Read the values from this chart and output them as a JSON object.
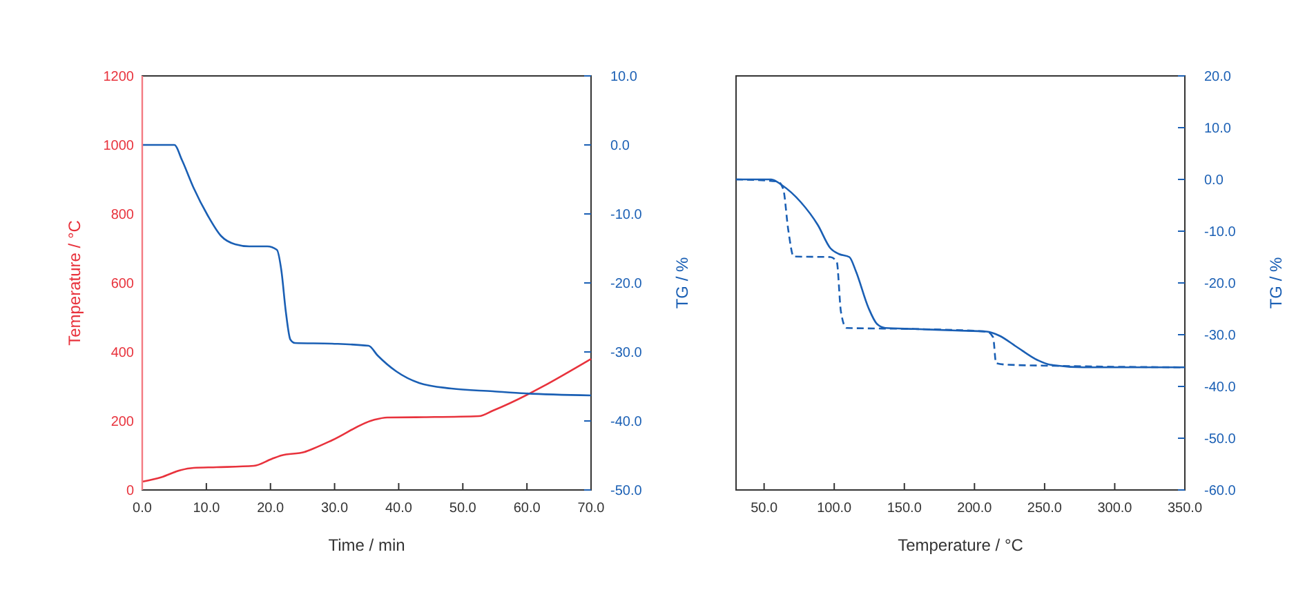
{
  "chart_data": [
    {
      "type": "line",
      "xlabel": "Time / min",
      "ylabel": "Temperature / °C",
      "y2label": "TG / %",
      "xlim": [
        0,
        70
      ],
      "xticks": [
        {
          "value": 0,
          "label": "0.0"
        },
        {
          "value": 10,
          "label": "10.0"
        },
        {
          "value": 20,
          "label": "20.0"
        },
        {
          "value": 30,
          "label": "30.0"
        },
        {
          "value": 40,
          "label": "40.0"
        },
        {
          "value": 50,
          "label": "50.0"
        },
        {
          "value": 60,
          "label": "60.0"
        },
        {
          "value": 70,
          "label": "70.0"
        }
      ],
      "ylim": [
        0,
        1200
      ],
      "yticks": [
        0,
        200,
        400,
        600,
        800,
        1000,
        1200
      ],
      "y2lim": [
        -50,
        10
      ],
      "y2ticks": [
        {
          "value": -50,
          "label": "-50.0"
        },
        {
          "value": -40,
          "label": "-40.0"
        },
        {
          "value": -30,
          "label": "-30.0"
        },
        {
          "value": -20,
          "label": "-20.0"
        },
        {
          "value": -10,
          "label": "-10.0"
        },
        {
          "value": 0,
          "label": "0.0"
        },
        {
          "value": 10,
          "label": "10.0"
        }
      ],
      "grid": false,
      "series": [
        {
          "color": "#e8323c",
          "axis": "y",
          "x": [
            0,
            3,
            5.9,
            8,
            11.6,
            17.4,
            20.2,
            21.7,
            25.3,
            26.7,
            29.6,
            36.1,
            38.2,
            44,
            52.5,
            54.7,
            70
          ],
          "values": [
            24,
            37,
            57,
            64,
            66,
            70,
            90,
            100,
            110,
            120,
            144,
            203,
            210,
            211,
            214,
            230,
            380
          ]
        },
        {
          "color": "#1a5fb4",
          "axis": "y2",
          "x": [
            0,
            5,
            6.2,
            8,
            10.2,
            12.3,
            14.5,
            16.7,
            19.5,
            21,
            21.7,
            22.4,
            23.1,
            23.8,
            29.6,
            35.3,
            36.7,
            39.6,
            43.2,
            48.2,
            54.7,
            59.7,
            70
          ],
          "values": [
            0,
            0,
            -2.2,
            -6.2,
            -10.2,
            -13.2,
            -14.4,
            -14.7,
            -14.7,
            -15.2,
            -18.2,
            -24.2,
            -28.2,
            -28.7,
            -28.8,
            -29.1,
            -30.5,
            -32.8,
            -34.5,
            -35.3,
            -35.7,
            -36,
            -36.3
          ]
        }
      ]
    },
    {
      "type": "line",
      "xlabel": "Temperature / °C",
      "y2label": "TG / %",
      "xlim": [
        30,
        350
      ],
      "xticks": [
        {
          "value": 50,
          "label": "50.0"
        },
        {
          "value": 100,
          "label": "100.0"
        },
        {
          "value": 150,
          "label": "150.0"
        },
        {
          "value": 200,
          "label": "200.0"
        },
        {
          "value": 250,
          "label": "250.0"
        },
        {
          "value": 300,
          "label": "300.0"
        },
        {
          "value": 350,
          "label": "350.0"
        }
      ],
      "y2lim": [
        -60,
        20
      ],
      "y2ticks": [
        {
          "value": -60,
          "label": "-60.0"
        },
        {
          "value": -50,
          "label": "-50.0"
        },
        {
          "value": -40,
          "label": "-40.0"
        },
        {
          "value": -30,
          "label": "-30.0"
        },
        {
          "value": -20,
          "label": "-20.0"
        },
        {
          "value": -10,
          "label": "-10.0"
        },
        {
          "value": 0,
          "label": "0.0"
        },
        {
          "value": 10,
          "label": "10.0"
        },
        {
          "value": 20,
          "label": "20.0"
        }
      ],
      "grid": false,
      "series": [
        {
          "color": "#1a5fb4",
          "axis": "y2",
          "line_style": "solid",
          "x": [
            30,
            55.1,
            62.7,
            76.2,
            88.3,
            97.3,
            103.3,
            110.8,
            115.4,
            124.4,
            130.4,
            136.4,
            157.5,
            187.7,
            208.7,
            217.8,
            229.8,
            244.9,
            253.9,
            278,
            350
          ],
          "values": [
            0,
            0,
            -1.1,
            -4.4,
            -8.8,
            -13.3,
            -14.4,
            -15,
            -17.7,
            -24.8,
            -27.9,
            -28.7,
            -28.9,
            -29.2,
            -29.4,
            -30.2,
            -32.3,
            -34.9,
            -35.8,
            -36.3,
            -36.3
          ]
        },
        {
          "color": "#1a5fb4",
          "axis": "y2",
          "line_style": "dashed",
          "x": [
            30,
            59.6,
            63.6,
            67.2,
            71.1,
            97.3,
            101.8,
            104.8,
            108.7,
            157.5,
            208.7,
            213.3,
            215.4,
            223.8,
            253.9,
            350
          ],
          "values": [
            0,
            -0.4,
            -1.8,
            -9.7,
            -14.9,
            -15,
            -15.9,
            -25.6,
            -28.7,
            -28.9,
            -29.4,
            -30.5,
            -35.5,
            -35.8,
            -36,
            -36.3
          ]
        }
      ]
    }
  ]
}
